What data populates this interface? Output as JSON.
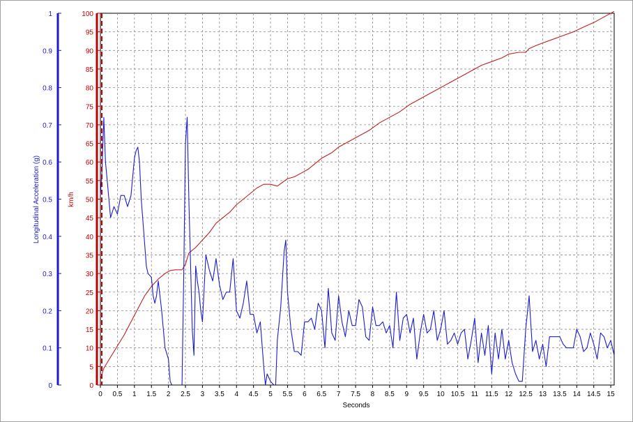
{
  "chart_data": {
    "type": "line",
    "xlabel": "Seconds",
    "xlim": [
      0,
      15.1
    ],
    "x_ticks": [
      "0",
      "0.5",
      "1",
      "1.5",
      "2",
      "2.5",
      "3",
      "3.5",
      "4",
      "4.5",
      "5",
      "5.5",
      "6",
      "6.5",
      "7",
      "7.5",
      "8",
      "8.5",
      "9",
      "9.5",
      "10",
      "10.5",
      "11",
      "11.5",
      "12",
      "12.5",
      "13",
      "13.5",
      "14",
      "14.5",
      "15"
    ],
    "grid": true,
    "axes": [
      {
        "id": "accel",
        "label": "Longitudinal Acceleration (g)",
        "color": "#1b1bd0",
        "lim": [
          0,
          1
        ],
        "ticks": [
          "0",
          "0.1",
          "0.2",
          "0.3",
          "0.4",
          "0.5",
          "0.6",
          "0.7",
          "0.8",
          "0.9",
          "1"
        ]
      },
      {
        "id": "speed",
        "label": "km/h",
        "color": "#c00000",
        "lim": [
          0,
          100
        ],
        "ticks": [
          "0",
          "5",
          "10",
          "15",
          "20",
          "25",
          "30",
          "35",
          "40",
          "45",
          "50",
          "55",
          "60",
          "65",
          "70",
          "75",
          "80",
          "85",
          "90",
          "95",
          "100"
        ]
      }
    ],
    "series": [
      {
        "axis": "speed",
        "color": "#c02020",
        "points": [
          [
            0,
            1.5
          ],
          [
            0.1,
            4.5
          ],
          [
            0.3,
            7.5
          ],
          [
            0.5,
            10.5
          ],
          [
            0.7,
            13.5
          ],
          [
            0.9,
            17
          ],
          [
            1.1,
            20.5
          ],
          [
            1.3,
            24
          ],
          [
            1.5,
            26.5
          ],
          [
            1.7,
            28.5
          ],
          [
            1.9,
            30
          ],
          [
            2.05,
            30.8
          ],
          [
            2.2,
            31
          ],
          [
            2.4,
            31
          ],
          [
            2.5,
            32.5
          ],
          [
            2.6,
            35.5
          ],
          [
            2.8,
            37
          ],
          [
            3.0,
            39
          ],
          [
            3.2,
            41
          ],
          [
            3.4,
            43.5
          ],
          [
            3.6,
            45
          ],
          [
            3.8,
            46.5
          ],
          [
            4.0,
            48.5
          ],
          [
            4.2,
            50
          ],
          [
            4.4,
            51.5
          ],
          [
            4.6,
            53
          ],
          [
            4.8,
            54
          ],
          [
            5.0,
            54
          ],
          [
            5.2,
            53.5
          ],
          [
            5.35,
            54.5
          ],
          [
            5.5,
            55.5
          ],
          [
            5.7,
            56
          ],
          [
            5.9,
            57
          ],
          [
            6.1,
            58
          ],
          [
            6.3,
            59.5
          ],
          [
            6.5,
            61
          ],
          [
            6.8,
            62.5
          ],
          [
            7.0,
            64
          ],
          [
            7.3,
            65.5
          ],
          [
            7.6,
            67
          ],
          [
            7.9,
            68.5
          ],
          [
            8.2,
            70.5
          ],
          [
            8.5,
            72
          ],
          [
            8.8,
            73.5
          ],
          [
            9.1,
            75.5
          ],
          [
            9.4,
            77
          ],
          [
            9.7,
            78.5
          ],
          [
            10.0,
            80
          ],
          [
            10.3,
            81.5
          ],
          [
            10.6,
            83
          ],
          [
            10.9,
            84.5
          ],
          [
            11.2,
            86
          ],
          [
            11.5,
            87
          ],
          [
            11.8,
            88
          ],
          [
            12.0,
            89
          ],
          [
            12.3,
            89.5
          ],
          [
            12.5,
            89.5
          ],
          [
            12.6,
            90.5
          ],
          [
            12.8,
            91.3
          ],
          [
            13.0,
            92
          ],
          [
            13.3,
            93
          ],
          [
            13.6,
            94
          ],
          [
            13.9,
            95
          ],
          [
            14.2,
            96.3
          ],
          [
            14.5,
            97.5
          ],
          [
            14.8,
            99
          ],
          [
            15.1,
            100.5
          ]
        ]
      },
      {
        "axis": "accel",
        "color": "#1b1bd0",
        "points": [
          [
            0,
            0.51
          ],
          [
            0.05,
            0.58
          ],
          [
            0.1,
            0.72
          ],
          [
            0.15,
            0.6
          ],
          [
            0.2,
            0.55
          ],
          [
            0.3,
            0.45
          ],
          [
            0.4,
            0.48
          ],
          [
            0.5,
            0.46
          ],
          [
            0.6,
            0.51
          ],
          [
            0.7,
            0.51
          ],
          [
            0.8,
            0.48
          ],
          [
            0.9,
            0.51
          ],
          [
            1.0,
            0.61
          ],
          [
            1.05,
            0.63
          ],
          [
            1.1,
            0.64
          ],
          [
            1.15,
            0.6
          ],
          [
            1.2,
            0.5
          ],
          [
            1.3,
            0.38
          ],
          [
            1.35,
            0.32
          ],
          [
            1.4,
            0.3
          ],
          [
            1.5,
            0.29
          ],
          [
            1.55,
            0.24
          ],
          [
            1.6,
            0.22
          ],
          [
            1.65,
            0.24
          ],
          [
            1.7,
            0.28
          ],
          [
            1.8,
            0.2
          ],
          [
            1.9,
            0.1
          ],
          [
            2.0,
            0.07
          ],
          [
            2.05,
            0.01
          ],
          [
            2.1,
            0
          ],
          [
            2.2,
            0
          ],
          [
            2.3,
            0
          ],
          [
            2.4,
            0
          ],
          [
            2.45,
            0.3
          ],
          [
            2.5,
            0.65
          ],
          [
            2.55,
            0.72
          ],
          [
            2.6,
            0.5
          ],
          [
            2.65,
            0.33
          ],
          [
            2.7,
            0.15
          ],
          [
            2.75,
            0.08
          ],
          [
            2.8,
            0.32
          ],
          [
            2.85,
            0.28
          ],
          [
            2.9,
            0.25
          ],
          [
            2.95,
            0.2
          ],
          [
            3.0,
            0.17
          ],
          [
            3.1,
            0.35
          ],
          [
            3.2,
            0.31
          ],
          [
            3.3,
            0.28
          ],
          [
            3.4,
            0.34
          ],
          [
            3.5,
            0.27
          ],
          [
            3.6,
            0.23
          ],
          [
            3.7,
            0.25
          ],
          [
            3.8,
            0.25
          ],
          [
            3.9,
            0.34
          ],
          [
            4.0,
            0.2
          ],
          [
            4.1,
            0.18
          ],
          [
            4.2,
            0.22
          ],
          [
            4.3,
            0.28
          ],
          [
            4.4,
            0.19
          ],
          [
            4.5,
            0.19
          ],
          [
            4.6,
            0.14
          ],
          [
            4.7,
            0.17
          ],
          [
            4.8,
            0.05
          ],
          [
            4.85,
            0
          ],
          [
            4.9,
            0.03
          ],
          [
            5.0,
            0.01
          ],
          [
            5.1,
            0
          ],
          [
            5.15,
            0
          ],
          [
            5.2,
            0.12
          ],
          [
            5.3,
            0.21
          ],
          [
            5.4,
            0.36
          ],
          [
            5.45,
            0.39
          ],
          [
            5.5,
            0.25
          ],
          [
            5.6,
            0.15
          ],
          [
            5.7,
            0.09
          ],
          [
            5.8,
            0.09
          ],
          [
            5.9,
            0.08
          ],
          [
            6.0,
            0.17
          ],
          [
            6.1,
            0.17
          ],
          [
            6.2,
            0.18
          ],
          [
            6.3,
            0.15
          ],
          [
            6.4,
            0.22
          ],
          [
            6.5,
            0.2
          ],
          [
            6.6,
            0.1
          ],
          [
            6.7,
            0.26
          ],
          [
            6.8,
            0.14
          ],
          [
            6.9,
            0.12
          ],
          [
            7.0,
            0.24
          ],
          [
            7.1,
            0.17
          ],
          [
            7.2,
            0.13
          ],
          [
            7.3,
            0.2
          ],
          [
            7.4,
            0.16
          ],
          [
            7.5,
            0.16
          ],
          [
            7.6,
            0.23
          ],
          [
            7.7,
            0.21
          ],
          [
            7.8,
            0.13
          ],
          [
            7.9,
            0.12
          ],
          [
            8.0,
            0.21
          ],
          [
            8.1,
            0.16
          ],
          [
            8.2,
            0.16
          ],
          [
            8.3,
            0.17
          ],
          [
            8.4,
            0.14
          ],
          [
            8.5,
            0.16
          ],
          [
            8.6,
            0.1
          ],
          [
            8.7,
            0.25
          ],
          [
            8.8,
            0.12
          ],
          [
            8.9,
            0.18
          ],
          [
            9.0,
            0.19
          ],
          [
            9.1,
            0.14
          ],
          [
            9.2,
            0.18
          ],
          [
            9.3,
            0.07
          ],
          [
            9.4,
            0.14
          ],
          [
            9.5,
            0.19
          ],
          [
            9.6,
            0.14
          ],
          [
            9.7,
            0.15
          ],
          [
            9.8,
            0.2
          ],
          [
            9.9,
            0.12
          ],
          [
            10.0,
            0.15
          ],
          [
            10.1,
            0.2
          ],
          [
            10.2,
            0.11
          ],
          [
            10.3,
            0.12
          ],
          [
            10.4,
            0.14
          ],
          [
            10.5,
            0.11
          ],
          [
            10.6,
            0.14
          ],
          [
            10.7,
            0.15
          ],
          [
            10.8,
            0.07
          ],
          [
            10.9,
            0.12
          ],
          [
            11.0,
            0.18
          ],
          [
            11.1,
            0.06
          ],
          [
            11.2,
            0.14
          ],
          [
            11.3,
            0.08
          ],
          [
            11.4,
            0.16
          ],
          [
            11.5,
            0.03
          ],
          [
            11.6,
            0.14
          ],
          [
            11.7,
            0.07
          ],
          [
            11.8,
            0.15
          ],
          [
            11.9,
            0.07
          ],
          [
            12.0,
            0.12
          ],
          [
            12.1,
            0.06
          ],
          [
            12.2,
            0.03
          ],
          [
            12.3,
            0.01
          ],
          [
            12.4,
            0.01
          ],
          [
            12.5,
            0.15
          ],
          [
            12.6,
            0.24
          ],
          [
            12.7,
            0.09
          ],
          [
            12.8,
            0.12
          ],
          [
            12.9,
            0.07
          ],
          [
            13.0,
            0.11
          ],
          [
            13.1,
            0.05
          ],
          [
            13.2,
            0.13
          ],
          [
            13.3,
            0.13
          ],
          [
            13.4,
            0.13
          ],
          [
            13.5,
            0.13
          ],
          [
            13.6,
            0.11
          ],
          [
            13.7,
            0.1
          ],
          [
            13.8,
            0.1
          ],
          [
            13.9,
            0.1
          ],
          [
            14.0,
            0.15
          ],
          [
            14.1,
            0.13
          ],
          [
            14.2,
            0.09
          ],
          [
            14.3,
            0.1
          ],
          [
            14.4,
            0.14
          ],
          [
            14.5,
            0.11
          ],
          [
            14.6,
            0.07
          ],
          [
            14.7,
            0.14
          ],
          [
            14.8,
            0.13
          ],
          [
            14.9,
            0.1
          ],
          [
            15.0,
            0.12
          ],
          [
            15.1,
            0.08
          ]
        ]
      }
    ]
  }
}
